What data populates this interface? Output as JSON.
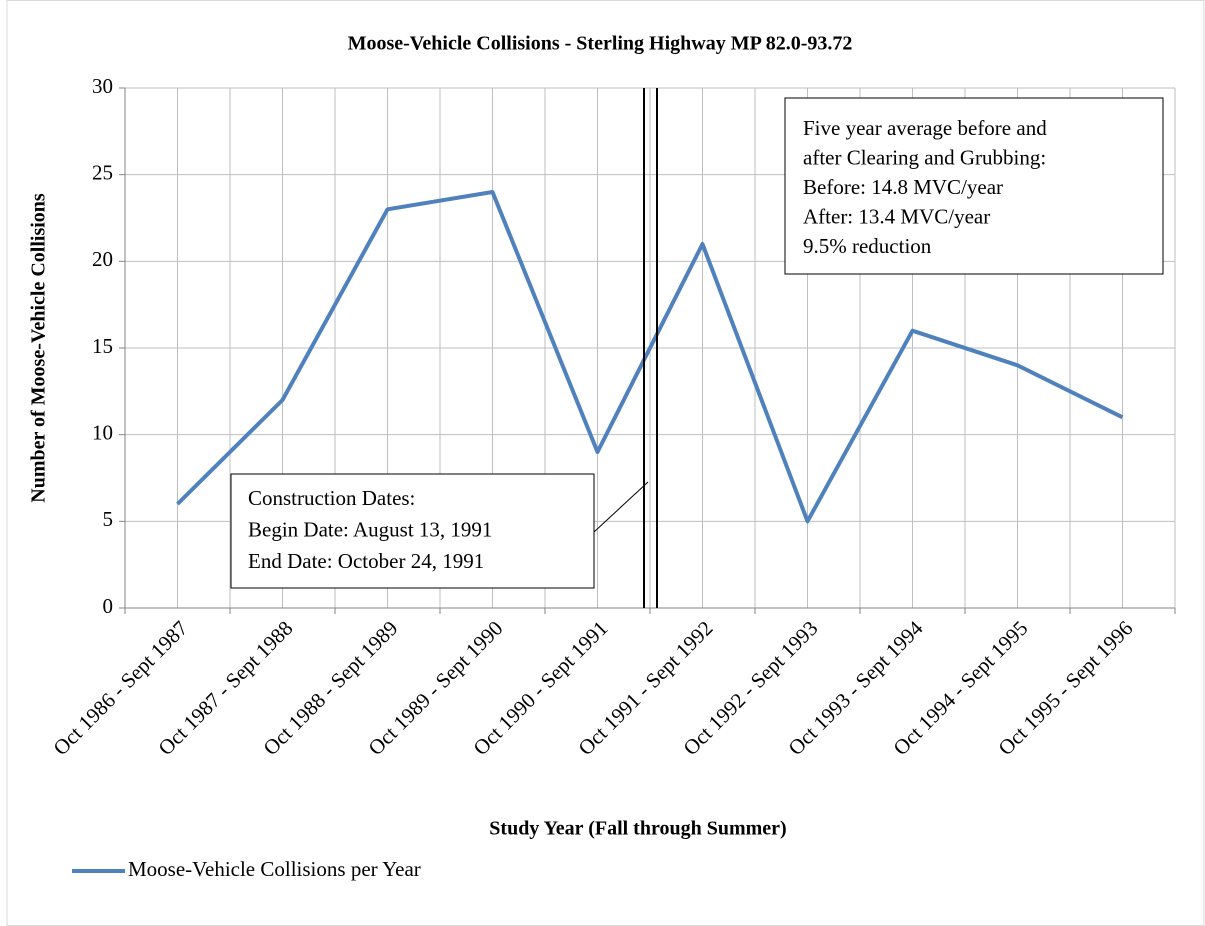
{
  "chart_data": {
    "type": "line",
    "title": "Moose-Vehicle Collisions - Sterling Highway MP 82.0-93.72",
    "x_label": "Study Year (Fall through Summer)",
    "y_label": "Number of Moose-Vehicle Collisions",
    "categories": [
      "Oct 1986 - Sept 1987",
      "Oct 1987 - Sept 1988",
      "Oct 1988 - Sept 1989",
      "Oct 1989 - Sept 1990",
      "Oct 1990 - Sept 1991",
      "Oct 1991 - Sept 1992",
      "Oct 1992 - Sept 1993",
      "Oct 1993 - Sept 1994",
      "Oct 1994 - Sept 1995",
      "Oct 1995 - Sept 1996"
    ],
    "series": [
      {
        "name": "Moose-Vehicle Collisions per Year",
        "color": "#4f81bd",
        "values": [
          6,
          12,
          23,
          24,
          9,
          21,
          5,
          16,
          14,
          11
        ]
      }
    ],
    "ylim": [
      0,
      30
    ],
    "yticks": [
      0,
      5,
      10,
      15,
      20,
      25,
      30
    ],
    "grid": true,
    "legend": "bottom-left",
    "annotations": [
      {
        "lines": [
          "Five year average before and",
          "after Clearing and Grubbing:",
          "Before: 14.8 MVC/year",
          "After: 13.4 MVC/year",
          "9.5% reduction"
        ]
      },
      {
        "lines": [
          "Construction Dates:",
          "Begin Date: August 13, 1991",
          "End Date: October 24, 1991"
        ]
      }
    ]
  }
}
